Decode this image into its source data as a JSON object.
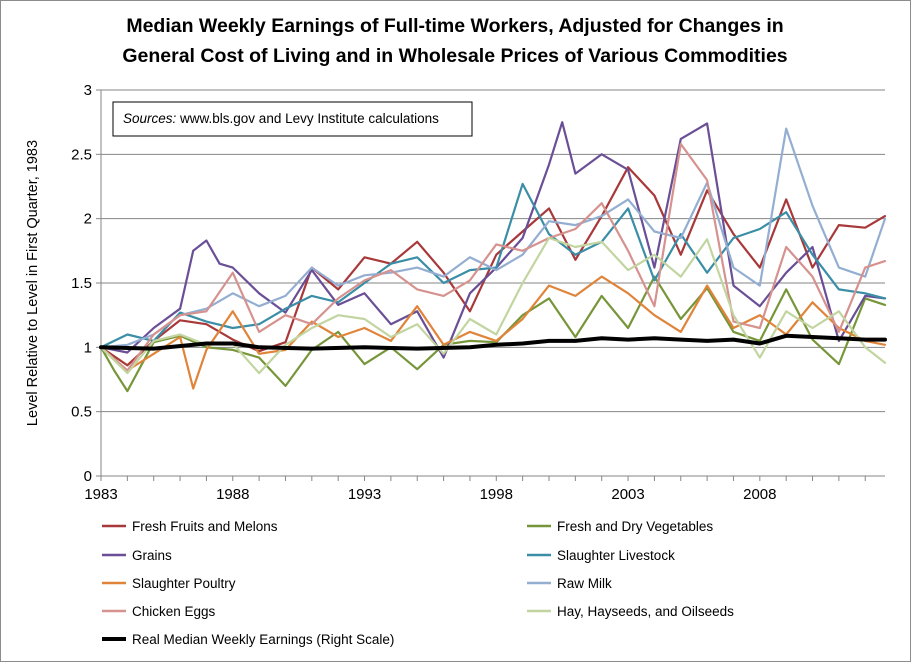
{
  "chart_data": {
    "type": "line",
    "title": [
      "Median Weekly Earnings of Full-time Workers, Adjusted for Changes in",
      "General Cost of Living and in Wholesale Prices of Various Commodities"
    ],
    "ylabel": "Level Relative to Level in First Quarter, 1983",
    "source_note_prefix": "Sources:",
    "source_note_text": " www.bls.gov and Levy Institute calculations",
    "ylim": [
      0,
      3
    ],
    "xlim": [
      1983,
      2012.75
    ],
    "yticks": [
      "0",
      "0.5",
      "1",
      "1.5",
      "2",
      "2.5",
      "3"
    ],
    "xticks": [
      "1983",
      "1988",
      "1993",
      "1998",
      "2003",
      "2008"
    ],
    "grid": "horizontal",
    "legend_position": "bottom",
    "series": [
      {
        "name": "Fresh Fruits and Melons",
        "color": "#a8393a",
        "points": [
          [
            1983,
            1.0
          ],
          [
            1984,
            0.86
          ],
          [
            1985,
            1.05
          ],
          [
            1986,
            1.21
          ],
          [
            1987,
            1.18
          ],
          [
            1988,
            1.06
          ],
          [
            1989,
            0.97
          ],
          [
            1990,
            1.04
          ],
          [
            1991,
            1.62
          ],
          [
            1992,
            1.45
          ],
          [
            1993,
            1.7
          ],
          [
            1994,
            1.65
          ],
          [
            1995,
            1.82
          ],
          [
            1996,
            1.58
          ],
          [
            1997,
            1.28
          ],
          [
            1998,
            1.72
          ],
          [
            1999,
            1.9
          ],
          [
            2000,
            2.08
          ],
          [
            2001,
            1.68
          ],
          [
            2002,
            2.02
          ],
          [
            2003,
            2.4
          ],
          [
            2004,
            2.18
          ],
          [
            2005,
            1.72
          ],
          [
            2006,
            2.22
          ],
          [
            2007,
            1.88
          ],
          [
            2008,
            1.62
          ],
          [
            2009,
            2.15
          ],
          [
            2010,
            1.62
          ],
          [
            2011,
            1.95
          ],
          [
            2012,
            1.93
          ],
          [
            2012.75,
            2.02
          ]
        ]
      },
      {
        "name": "Fresh and Dry Vegetables",
        "color": "#77963a",
        "points": [
          [
            1983,
            1.0
          ],
          [
            1983.5,
            0.82
          ],
          [
            1984,
            0.66
          ],
          [
            1985,
            1.04
          ],
          [
            1986,
            1.09
          ],
          [
            1987,
            1.0
          ],
          [
            1988,
            0.98
          ],
          [
            1989,
            0.92
          ],
          [
            1990,
            0.7
          ],
          [
            1991,
            0.98
          ],
          [
            1992,
            1.12
          ],
          [
            1993,
            0.87
          ],
          [
            1994,
            1.0
          ],
          [
            1995,
            0.83
          ],
          [
            1996,
            1.02
          ],
          [
            1997,
            1.05
          ],
          [
            1998,
            1.04
          ],
          [
            1999,
            1.25
          ],
          [
            2000,
            1.38
          ],
          [
            2001,
            1.08
          ],
          [
            2002,
            1.4
          ],
          [
            2003,
            1.15
          ],
          [
            2004,
            1.55
          ],
          [
            2005,
            1.22
          ],
          [
            2006,
            1.46
          ],
          [
            2007,
            1.12
          ],
          [
            2008,
            1.05
          ],
          [
            2009,
            1.45
          ],
          [
            2010,
            1.06
          ],
          [
            2011,
            0.87
          ],
          [
            2012,
            1.38
          ],
          [
            2012.75,
            1.33
          ]
        ]
      },
      {
        "name": "Grains",
        "color": "#6a4f96",
        "points": [
          [
            1983,
            1.0
          ],
          [
            1984,
            0.96
          ],
          [
            1985,
            1.15
          ],
          [
            1986,
            1.3
          ],
          [
            1986.5,
            1.75
          ],
          [
            1987,
            1.83
          ],
          [
            1987.5,
            1.65
          ],
          [
            1988,
            1.62
          ],
          [
            1989,
            1.42
          ],
          [
            1990,
            1.27
          ],
          [
            1991,
            1.6
          ],
          [
            1992,
            1.33
          ],
          [
            1993,
            1.42
          ],
          [
            1994,
            1.18
          ],
          [
            1995,
            1.28
          ],
          [
            1996,
            0.92
          ],
          [
            1997,
            1.42
          ],
          [
            1998,
            1.62
          ],
          [
            1999,
            1.85
          ],
          [
            2000,
            2.42
          ],
          [
            2000.5,
            2.75
          ],
          [
            2001,
            2.35
          ],
          [
            2002,
            2.5
          ],
          [
            2003,
            2.38
          ],
          [
            2004,
            1.62
          ],
          [
            2005,
            2.62
          ],
          [
            2006,
            2.74
          ],
          [
            2007,
            1.48
          ],
          [
            2008,
            1.32
          ],
          [
            2009,
            1.58
          ],
          [
            2010,
            1.78
          ],
          [
            2011,
            1.05
          ],
          [
            2012,
            1.4
          ],
          [
            2012.75,
            1.38
          ]
        ]
      },
      {
        "name": "Slaughter Livestock",
        "color": "#3a8ea6",
        "points": [
          [
            1983,
            1.0
          ],
          [
            1984,
            1.1
          ],
          [
            1985,
            1.05
          ],
          [
            1986,
            1.27
          ],
          [
            1987,
            1.2
          ],
          [
            1988,
            1.15
          ],
          [
            1989,
            1.18
          ],
          [
            1990,
            1.3
          ],
          [
            1991,
            1.4
          ],
          [
            1992,
            1.35
          ],
          [
            1993,
            1.5
          ],
          [
            1994,
            1.65
          ],
          [
            1995,
            1.7
          ],
          [
            1996,
            1.5
          ],
          [
            1997,
            1.6
          ],
          [
            1998,
            1.62
          ],
          [
            1999,
            2.27
          ],
          [
            2000,
            1.88
          ],
          [
            2001,
            1.72
          ],
          [
            2002,
            1.82
          ],
          [
            2003,
            2.08
          ],
          [
            2004,
            1.52
          ],
          [
            2005,
            1.88
          ],
          [
            2006,
            1.58
          ],
          [
            2007,
            1.85
          ],
          [
            2008,
            1.92
          ],
          [
            2009,
            2.05
          ],
          [
            2010,
            1.72
          ],
          [
            2011,
            1.45
          ],
          [
            2012,
            1.42
          ],
          [
            2012.75,
            1.38
          ]
        ]
      },
      {
        "name": "Slaughter Poultry",
        "color": "#e0843a",
        "points": [
          [
            1983,
            1.0
          ],
          [
            1984,
            0.82
          ],
          [
            1985,
            0.95
          ],
          [
            1986,
            1.08
          ],
          [
            1986.5,
            0.68
          ],
          [
            1987,
            0.98
          ],
          [
            1988,
            1.28
          ],
          [
            1989,
            0.95
          ],
          [
            1990,
            0.98
          ],
          [
            1991,
            1.2
          ],
          [
            1992,
            1.08
          ],
          [
            1993,
            1.15
          ],
          [
            1994,
            1.05
          ],
          [
            1995,
            1.32
          ],
          [
            1996,
            1.02
          ],
          [
            1997,
            1.12
          ],
          [
            1998,
            1.05
          ],
          [
            1999,
            1.22
          ],
          [
            2000,
            1.48
          ],
          [
            2001,
            1.4
          ],
          [
            2002,
            1.55
          ],
          [
            2003,
            1.42
          ],
          [
            2004,
            1.25
          ],
          [
            2005,
            1.12
          ],
          [
            2006,
            1.48
          ],
          [
            2007,
            1.15
          ],
          [
            2008,
            1.25
          ],
          [
            2009,
            1.1
          ],
          [
            2010,
            1.35
          ],
          [
            2011,
            1.15
          ],
          [
            2012,
            1.05
          ],
          [
            2012.75,
            1.02
          ]
        ]
      },
      {
        "name": "Raw Milk",
        "color": "#94aed2",
        "points": [
          [
            1983,
            1.0
          ],
          [
            1984,
            1.02
          ],
          [
            1985,
            1.1
          ],
          [
            1986,
            1.25
          ],
          [
            1987,
            1.3
          ],
          [
            1988,
            1.42
          ],
          [
            1989,
            1.32
          ],
          [
            1990,
            1.4
          ],
          [
            1991,
            1.62
          ],
          [
            1992,
            1.48
          ],
          [
            1993,
            1.56
          ],
          [
            1994,
            1.58
          ],
          [
            1995,
            1.62
          ],
          [
            1996,
            1.55
          ],
          [
            1997,
            1.7
          ],
          [
            1998,
            1.6
          ],
          [
            1999,
            1.72
          ],
          [
            2000,
            1.98
          ],
          [
            2001,
            1.95
          ],
          [
            2002,
            2.02
          ],
          [
            2003,
            2.15
          ],
          [
            2004,
            1.9
          ],
          [
            2005,
            1.85
          ],
          [
            2006,
            2.28
          ],
          [
            2007,
            1.62
          ],
          [
            2008,
            1.48
          ],
          [
            2009,
            2.7
          ],
          [
            2010,
            2.1
          ],
          [
            2011,
            1.62
          ],
          [
            2012,
            1.55
          ],
          [
            2012.75,
            2.0
          ]
        ]
      },
      {
        "name": "Chicken Eggs",
        "color": "#d6928f",
        "points": [
          [
            1983,
            1.0
          ],
          [
            1984,
            0.82
          ],
          [
            1985,
            1.1
          ],
          [
            1986,
            1.25
          ],
          [
            1987,
            1.28
          ],
          [
            1988,
            1.58
          ],
          [
            1989,
            1.12
          ],
          [
            1990,
            1.25
          ],
          [
            1991,
            1.18
          ],
          [
            1992,
            1.38
          ],
          [
            1993,
            1.52
          ],
          [
            1994,
            1.6
          ],
          [
            1995,
            1.45
          ],
          [
            1996,
            1.4
          ],
          [
            1997,
            1.52
          ],
          [
            1998,
            1.8
          ],
          [
            1999,
            1.75
          ],
          [
            2000,
            1.85
          ],
          [
            2001,
            1.92
          ],
          [
            2002,
            2.12
          ],
          [
            2003,
            1.75
          ],
          [
            2004,
            1.32
          ],
          [
            2005,
            2.58
          ],
          [
            2006,
            2.3
          ],
          [
            2007,
            1.2
          ],
          [
            2008,
            1.15
          ],
          [
            2009,
            1.78
          ],
          [
            2010,
            1.55
          ],
          [
            2011,
            1.12
          ],
          [
            2012,
            1.62
          ],
          [
            2012.75,
            1.67
          ]
        ]
      },
      {
        "name": "Hay, Hayseeds, and Oilseeds",
        "color": "#c2d5a0",
        "points": [
          [
            1983,
            1.0
          ],
          [
            1984,
            0.8
          ],
          [
            1985,
            1.05
          ],
          [
            1986,
            1.1
          ],
          [
            1987,
            1.02
          ],
          [
            1988,
            1.03
          ],
          [
            1989,
            0.8
          ],
          [
            1990,
            1.02
          ],
          [
            1991,
            1.15
          ],
          [
            1992,
            1.25
          ],
          [
            1993,
            1.22
          ],
          [
            1994,
            1.08
          ],
          [
            1995,
            1.18
          ],
          [
            1996,
            0.95
          ],
          [
            1997,
            1.22
          ],
          [
            1998,
            1.1
          ],
          [
            1999,
            1.5
          ],
          [
            2000,
            1.85
          ],
          [
            2001,
            1.78
          ],
          [
            2002,
            1.82
          ],
          [
            2003,
            1.6
          ],
          [
            2004,
            1.72
          ],
          [
            2005,
            1.55
          ],
          [
            2006,
            1.84
          ],
          [
            2007,
            1.25
          ],
          [
            2008,
            0.92
          ],
          [
            2009,
            1.28
          ],
          [
            2010,
            1.15
          ],
          [
            2011,
            1.28
          ],
          [
            2012,
            1.0
          ],
          [
            2012.75,
            0.88
          ]
        ]
      },
      {
        "name": "Real Median Weekly Earnings (Right Scale)",
        "color": "#000000",
        "bold": true,
        "points": [
          [
            1983,
            1.0
          ],
          [
            1985,
            0.99
          ],
          [
            1987,
            1.03
          ],
          [
            1988,
            1.03
          ],
          [
            1989,
            1.0
          ],
          [
            1991,
            0.99
          ],
          [
            1993,
            1.0
          ],
          [
            1995,
            0.99
          ],
          [
            1997,
            1.0
          ],
          [
            1998,
            1.02
          ],
          [
            1999,
            1.03
          ],
          [
            2000,
            1.05
          ],
          [
            2001,
            1.05
          ],
          [
            2002,
            1.07
          ],
          [
            2003,
            1.06
          ],
          [
            2004,
            1.07
          ],
          [
            2005,
            1.06
          ],
          [
            2006,
            1.05
          ],
          [
            2007,
            1.06
          ],
          [
            2008,
            1.03
          ],
          [
            2009,
            1.09
          ],
          [
            2010,
            1.08
          ],
          [
            2011,
            1.07
          ],
          [
            2012,
            1.06
          ],
          [
            2012.75,
            1.06
          ]
        ]
      }
    ]
  }
}
